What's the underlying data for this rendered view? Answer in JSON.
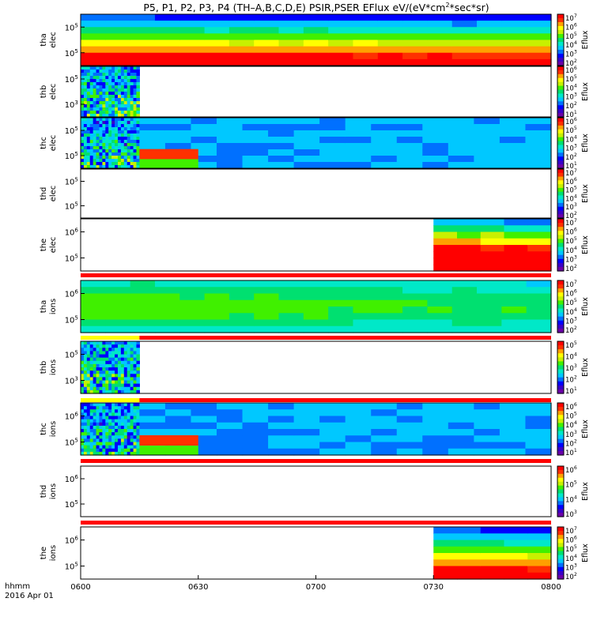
{
  "chart_data": {
    "type": "heatmap",
    "title": "P5, P1, P2, P3, P4 (TH–A,B,C,D,E) PSIR,PSER EFlux eV/(eV*cm2*sec*sr)",
    "title_main": "P5, P1, P2, P3, P4 (TH–A,B,C,D,E) PSIR,PSER EFlux eV/(eV*cm",
    "title_sup": "2",
    "title_tail": "*sec*sr)",
    "x_axis": {
      "ticks": [
        "0600",
        "0630",
        "0700",
        "0730",
        "0800"
      ],
      "range": [
        "06:00",
        "08:00"
      ],
      "label_line1": "hhmm",
      "label_line2": "2016 Apr 01"
    },
    "colorbar_label": "Eflux",
    "panels": [
      {
        "ylabel": [
          "tha",
          "elec"
        ],
        "yticks": [
          "10^5",
          "10^5"
        ],
        "cbar_ticks": [
          "10^7",
          "10^6",
          "10^5",
          "10^4",
          "10^3",
          "10^2"
        ],
        "coverage": [
          [
            "06:00",
            "08:00"
          ]
        ],
        "pattern": "smooth",
        "base_level": 0.55,
        "gradient": "top_low_bottom_high"
      },
      {
        "ylabel": [
          "thb",
          "elec"
        ],
        "yticks": [
          "10^5",
          "10^3"
        ],
        "cbar_ticks": [
          "10^6",
          "10^5",
          "10^4",
          "10^3",
          "10^2",
          "10^1"
        ],
        "coverage": [
          [
            "06:00",
            "06:15"
          ]
        ],
        "pattern": "noisy",
        "base_level": 0.35
      },
      {
        "ylabel": [
          "thc",
          "elec"
        ],
        "yticks": [
          "10^5",
          "10^5"
        ],
        "cbar_ticks": [
          "10^6",
          "10^5",
          "10^4",
          "10^3",
          "10^2",
          "10^1"
        ],
        "coverage": [
          [
            "06:00",
            "06:15"
          ],
          [
            "06:15",
            "08:00"
          ]
        ],
        "pattern": "noisy_then_smooth",
        "base_level": 0.3,
        "hot_band": {
          "from": "06:15",
          "to": "06:30",
          "level": 0.92
        }
      },
      {
        "ylabel": [
          "thd",
          "elec"
        ],
        "yticks": [
          "10^5",
          "10^5"
        ],
        "cbar_ticks": [
          "10^7",
          "10^6",
          "10^5",
          "10^4",
          "10^3",
          "10^2"
        ],
        "coverage": [],
        "pattern": "empty"
      },
      {
        "ylabel": [
          "the",
          "elec"
        ],
        "yticks": [
          "10^6",
          "10^5"
        ],
        "cbar_ticks": [
          "10^7",
          "10^6",
          "10^5",
          "10^4",
          "10^3",
          "10^2"
        ],
        "coverage": [
          [
            "07:30",
            "08:00"
          ]
        ],
        "pattern": "smooth",
        "base_level": 0.8,
        "gradient": "top_low_bottom_high"
      },
      {
        "ylabel": [
          "tha",
          "ions"
        ],
        "yticks": [
          "10^6",
          "10^5"
        ],
        "cbar_ticks": [
          "10^7",
          "10^6",
          "10^5",
          "10^4",
          "10^3",
          "10^2"
        ],
        "coverage": [
          [
            "06:00",
            "08:00"
          ]
        ],
        "pattern": "smooth",
        "base_level": 0.45,
        "gradient": "middle_high"
      },
      {
        "ylabel": [
          "thb",
          "ions"
        ],
        "yticks": [
          "10^5",
          "10^3"
        ],
        "cbar_ticks": [
          "10^5",
          "10^4",
          "10^3",
          "10^2",
          "10^1"
        ],
        "coverage": [
          [
            "06:00",
            "06:15"
          ]
        ],
        "pattern": "noisy",
        "base_level": 0.35
      },
      {
        "ylabel": [
          "thc",
          "ions"
        ],
        "yticks": [
          "10^6",
          "10^5"
        ],
        "cbar_ticks": [
          "10^6",
          "10^5",
          "10^4",
          "10^3",
          "10^2",
          "10^1"
        ],
        "coverage": [
          [
            "06:00",
            "06:15"
          ],
          [
            "06:15",
            "08:00"
          ]
        ],
        "pattern": "noisy_then_smooth",
        "base_level": 0.3,
        "hot_band": {
          "from": "06:15",
          "to": "06:30",
          "level": 0.92
        }
      },
      {
        "ylabel": [
          "thd",
          "ions"
        ],
        "yticks": [
          "10^6",
          "10^5"
        ],
        "cbar_ticks": [
          "10^6",
          "10^5",
          "10^4",
          "10^3"
        ],
        "coverage": [],
        "pattern": "empty"
      },
      {
        "ylabel": [
          "the",
          "ions"
        ],
        "yticks": [
          "10^6",
          "10^5"
        ],
        "cbar_ticks": [
          "10^7",
          "10^6",
          "10^5",
          "10^4",
          "10^3",
          "10^2"
        ],
        "coverage": [
          [
            "07:30",
            "08:00"
          ]
        ],
        "pattern": "smooth",
        "base_level": 0.55,
        "gradient": "top_low_bottom_high"
      }
    ],
    "status_bars": [
      {
        "after_panel": 4,
        "segments": [
          {
            "from": "06:00",
            "to": "08:00",
            "color": "#ff0000"
          }
        ]
      },
      {
        "after_panel": 5,
        "segments": [
          {
            "from": "06:00",
            "to": "06:15",
            "color": "#ffff00"
          },
          {
            "from": "06:15",
            "to": "08:00",
            "color": "#ff0000"
          }
        ]
      },
      {
        "after_panel": 6,
        "segments": [
          {
            "from": "06:00",
            "to": "06:15",
            "color": "#ffff00"
          },
          {
            "from": "06:15",
            "to": "08:00",
            "color": "#ff0000"
          }
        ]
      },
      {
        "after_panel": 7,
        "segments": [
          {
            "from": "06:00",
            "to": "08:00",
            "color": "#ff0000"
          }
        ]
      },
      {
        "after_panel": 8,
        "segments": [
          {
            "from": "06:00",
            "to": "08:00",
            "color": "#ff0000"
          }
        ]
      }
    ],
    "colormap": [
      "#6a00a8",
      "#3a00c8",
      "#0000ff",
      "#0070ff",
      "#00c8ff",
      "#00e8c8",
      "#00e070",
      "#40f000",
      "#c8f000",
      "#ffff00",
      "#ffa000",
      "#ff3000",
      "#ff0000"
    ]
  }
}
